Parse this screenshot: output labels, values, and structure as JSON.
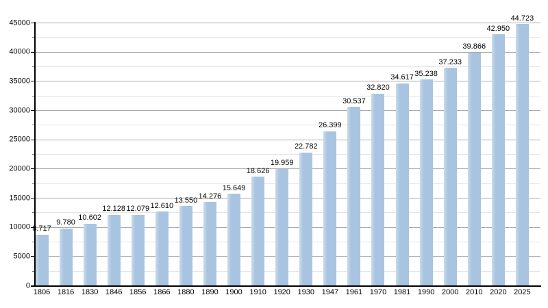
{
  "chart_data": {
    "type": "bar",
    "title": "",
    "xlabel": "",
    "ylabel": "",
    "categories": [
      "1806",
      "1816",
      "1830",
      "1846",
      "1856",
      "1866",
      "1880",
      "1890",
      "1900",
      "1910",
      "1920",
      "1930",
      "1947",
      "1961",
      "1970",
      "1981",
      "1990",
      "2000",
      "2010",
      "2020",
      "2025"
    ],
    "values": [
      8717,
      9780,
      10602,
      12128,
      12079,
      12610,
      13550,
      14276,
      15649,
      18626,
      19959,
      22782,
      26399,
      30537,
      32820,
      34617,
      35238,
      37233,
      39866,
      42950,
      44723
    ],
    "value_labels": [
      "8.717",
      "9.780",
      "10.602",
      "12.128",
      "12.079",
      "12.610",
      "13.550",
      "14.276",
      "15.649",
      "18.626",
      "19.959",
      "22.782",
      "26.399",
      "30.537",
      "32.820",
      "34.617",
      "35.238",
      "37.233",
      "39.866",
      "42.950",
      "44.723"
    ],
    "ylim": [
      0,
      45000
    ],
    "y_major_step": 5000,
    "y_minor_step": 2500,
    "y_tick_labels": [
      "0",
      "5000",
      "10000",
      "15000",
      "20000",
      "25000",
      "30000",
      "35000",
      "40000",
      "45000"
    ],
    "grid": "horizontal, major and minor lines",
    "legend": "none",
    "colors": {
      "bar_fill": "#a9c4e0",
      "bar_edge_highlight": "#c9dbec",
      "grid_major": "#a9a9a9",
      "grid_minor": "#e4e4e4",
      "minor_tick": "#777777",
      "axis": "#000000",
      "text": "#000000",
      "background": "#ffffff"
    }
  }
}
